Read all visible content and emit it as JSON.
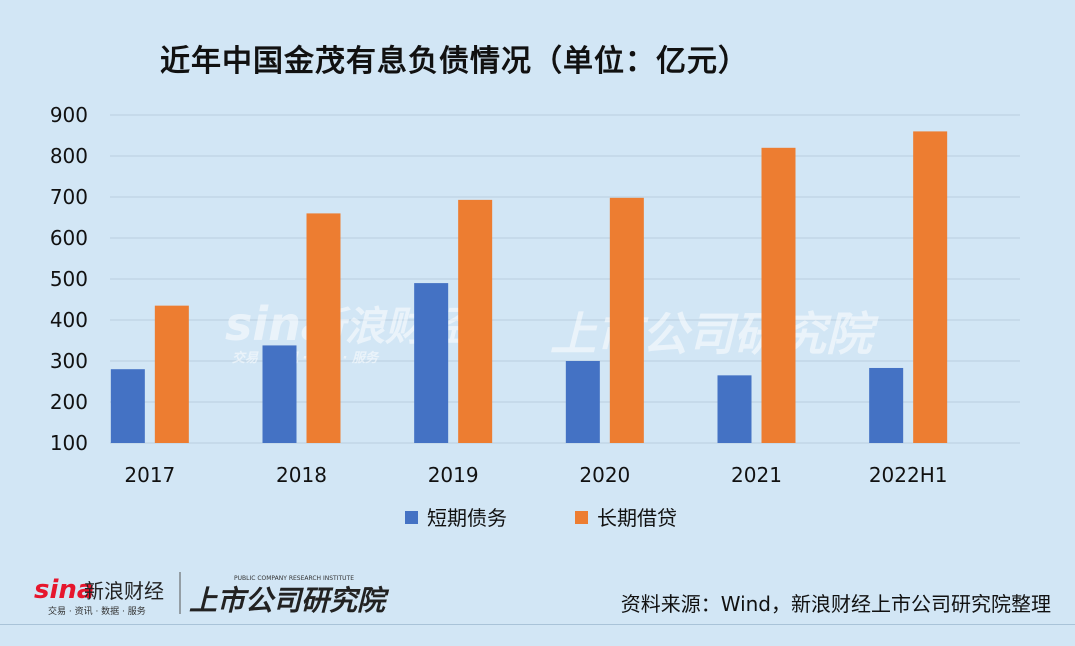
{
  "title": "近年中国金茂有息负债情况（单位：亿元）",
  "source": "资料来源：Wind，新浪财经上市公司研究院整理",
  "watermark": {
    "brand": "sina",
    "brand_cn": "新浪财经",
    "institute": "上市公司研究院",
    "tagline": "交易 · 资讯 · 数据 · 服务"
  },
  "footer_logo": {
    "brand": "sina",
    "brand_cn": "新浪财经",
    "tagline": "交易 · 资讯 · 数据 · 服务",
    "institute": "上市公司研究院",
    "institute_en": "PUBLIC COMPANY RESEARCH INSTITUTE"
  },
  "colors": {
    "background": "#d2e6f5",
    "series_short": "#4472c4",
    "series_long": "#ed7d31",
    "grid": "#b9cfe0"
  },
  "chart_data": {
    "type": "bar",
    "categories": [
      "2017",
      "2018",
      "2019",
      "2020",
      "2021",
      "2022H1"
    ],
    "series": [
      {
        "name": "短期债务",
        "values": [
          280,
          338,
          490,
          300,
          265,
          283
        ]
      },
      {
        "name": "长期借贷",
        "values": [
          435,
          660,
          693,
          698,
          820,
          860
        ]
      }
    ],
    "y_ticks": [
      "100",
      "200",
      "300",
      "400",
      "500",
      "600",
      "700",
      "800",
      "900"
    ],
    "ylim": [
      100,
      900
    ],
    "grid": true,
    "legend_position": "bottom"
  }
}
